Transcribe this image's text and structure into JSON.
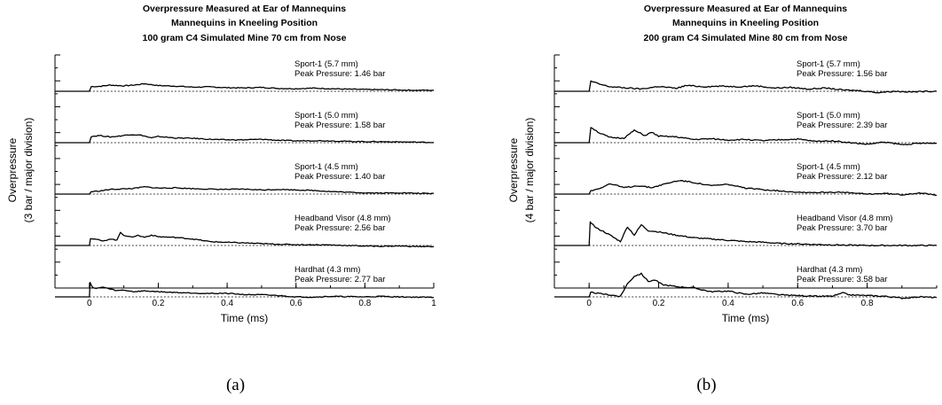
{
  "chart_data": [
    {
      "type": "line",
      "title": [
        "Overpressure Measured at Ear of Mannequins",
        "Mannequins in Kneeling Position",
        "100 gram C4 Simulated Mine 70 cm from Nose"
      ],
      "xlabel": "Time (ms)",
      "ylabel": [
        "Overpressure",
        "(3 bar / major division)"
      ],
      "xlim": [
        -0.1,
        1.0
      ],
      "xticks": [
        "0",
        "0.2",
        "0.4",
        "0.6",
        "0.8",
        "1"
      ],
      "xtick_values": [
        0,
        0.2,
        0.4,
        0.6,
        0.8,
        1.0
      ],
      "y_divisions": 5,
      "caption": "(a)",
      "series": [
        {
          "name": "Sport-1 (5.7 mm)",
          "peak_label": "Peak Pressure: 1.46 bar",
          "x": [
            -0.1,
            0.0,
            0.005,
            0.03,
            0.06,
            0.1,
            0.13,
            0.16,
            0.2,
            0.25,
            0.3,
            0.35,
            0.4,
            0.45,
            0.5,
            0.55,
            0.6,
            0.65,
            0.7,
            0.75,
            0.8,
            0.85,
            0.9,
            0.95,
            1.0
          ],
          "y": [
            0,
            0,
            0.9,
            0.95,
            1.2,
            1.05,
            1.2,
            1.46,
            1.1,
            1.0,
            0.8,
            0.85,
            0.7,
            0.65,
            0.75,
            0.55,
            0.5,
            0.6,
            0.5,
            0.4,
            0.35,
            0.3,
            0.25,
            0.2,
            0.2
          ]
        },
        {
          "name": "Sport-1 (5.0 mm)",
          "peak_label": "Peak Pressure: 1.58 bar",
          "x": [
            -0.1,
            0.0,
            0.005,
            0.03,
            0.06,
            0.09,
            0.12,
            0.15,
            0.18,
            0.2,
            0.25,
            0.3,
            0.35,
            0.4,
            0.45,
            0.5,
            0.55,
            0.6,
            0.65,
            0.7,
            0.75,
            0.8,
            0.85,
            0.9,
            0.95,
            1.0
          ],
          "y": [
            0,
            0,
            1.2,
            1.4,
            1.1,
            1.3,
            1.58,
            1.45,
            0.9,
            1.2,
            0.9,
            0.85,
            0.65,
            0.55,
            0.55,
            0.65,
            0.45,
            0.35,
            0.4,
            0.35,
            0.25,
            0.2,
            0.2,
            0.15,
            0.1,
            0.05
          ]
        },
        {
          "name": "Sport-1 (4.5 mm)",
          "peak_label": "Peak Pressure: 1.40 bar",
          "x": [
            -0.1,
            0.0,
            0.005,
            0.03,
            0.06,
            0.1,
            0.13,
            0.16,
            0.2,
            0.25,
            0.3,
            0.35,
            0.4,
            0.45,
            0.5,
            0.55,
            0.6,
            0.65,
            0.7,
            0.75,
            0.8,
            0.85,
            0.9,
            0.95,
            1.0
          ],
          "y": [
            0,
            0,
            0.45,
            0.6,
            0.9,
            1.0,
            1.1,
            1.4,
            1.15,
            1.2,
            1.05,
            0.95,
            0.9,
            0.95,
            0.8,
            0.9,
            0.8,
            0.7,
            0.5,
            0.35,
            0.25,
            0.2,
            0.25,
            0.15,
            0.1
          ]
        },
        {
          "name": "Headband Visor (4.8 mm)",
          "peak_label": "Peak Pressure: 2.56 bar",
          "x": [
            -0.1,
            0.0,
            0.003,
            0.02,
            0.04,
            0.06,
            0.08,
            0.09,
            0.1,
            0.12,
            0.14,
            0.16,
            0.18,
            0.2,
            0.25,
            0.3,
            0.35,
            0.4,
            0.45,
            0.5,
            0.55,
            0.6,
            0.65,
            0.7,
            0.75,
            0.8,
            0.85,
            0.9,
            0.95,
            1.0
          ],
          "y": [
            0,
            0,
            1.4,
            1.2,
            0.8,
            1.3,
            1.0,
            2.56,
            2.0,
            1.6,
            1.95,
            1.6,
            2.0,
            1.7,
            1.55,
            1.25,
            0.75,
            0.6,
            0.5,
            0.35,
            0.25,
            0.15,
            0.15,
            0.1,
            0.0,
            -0.1,
            -0.15,
            -0.1,
            -0.2,
            -0.2
          ]
        },
        {
          "name": "Hardhat (4.3 mm)",
          "peak_label": "Peak Pressure: 2.77 bar",
          "x": [
            -0.1,
            0.0,
            0.002,
            0.01,
            0.02,
            0.04,
            0.06,
            0.08,
            0.1,
            0.13,
            0.16,
            0.2,
            0.25,
            0.3,
            0.35,
            0.4,
            0.45,
            0.5,
            0.55,
            0.6,
            0.65,
            0.7,
            0.75,
            0.8,
            0.85,
            0.9,
            0.95,
            1.0
          ],
          "y": [
            0,
            0,
            2.77,
            1.8,
            1.6,
            1.9,
            1.5,
            1.2,
            1.3,
            1.0,
            1.15,
            1.0,
            0.85,
            0.75,
            0.65,
            0.7,
            0.45,
            0.4,
            0.25,
            0.0,
            -0.05,
            0.1,
            0.05,
            0.0,
            0.1,
            0.0,
            -0.05,
            -0.1
          ]
        }
      ]
    },
    {
      "type": "line",
      "title": [
        "Overpressure Measured at Ear of Mannequins",
        "Mannequins in Kneeling Position",
        "200 gram C4 Simulated Mine 80 cm from Nose"
      ],
      "xlabel": "Time (ms)",
      "ylabel": [
        "Overpressure",
        "(4 bar / major division)"
      ],
      "xlim": [
        -0.1,
        1.0
      ],
      "xticks": [
        "0",
        "0.2",
        "0.4",
        "0.6",
        "0.8"
      ],
      "xtick_values": [
        0,
        0.2,
        0.4,
        0.6,
        0.8
      ],
      "y_divisions": 4,
      "caption": "(b)",
      "series": [
        {
          "name": "Sport-1 (5.7 mm)",
          "peak_label": "Peak Pressure: 1.56 bar",
          "x": [
            -0.1,
            0.0,
            0.005,
            0.03,
            0.06,
            0.1,
            0.15,
            0.2,
            0.25,
            0.28,
            0.33,
            0.38,
            0.43,
            0.48,
            0.53,
            0.58,
            0.63,
            0.68,
            0.73,
            0.78,
            0.83,
            0.88,
            0.93,
            0.98,
            1.0
          ],
          "y": [
            0,
            0,
            1.56,
            1.1,
            0.7,
            0.55,
            0.35,
            0.75,
            0.45,
            0.9,
            0.7,
            0.8,
            0.7,
            0.85,
            0.5,
            0.6,
            0.35,
            0.5,
            0.2,
            0.1,
            -0.2,
            0.0,
            -0.1,
            0.0,
            0.0
          ]
        },
        {
          "name": "Sport-1 (5.0 mm)",
          "peak_label": "Peak Pressure: 2.39 bar",
          "x": [
            -0.1,
            0.0,
            0.005,
            0.03,
            0.06,
            0.1,
            0.13,
            0.16,
            0.18,
            0.2,
            0.25,
            0.3,
            0.35,
            0.4,
            0.45,
            0.5,
            0.55,
            0.6,
            0.65,
            0.7,
            0.75,
            0.8,
            0.85,
            0.9,
            0.95,
            1.0
          ],
          "y": [
            0,
            0,
            2.39,
            1.5,
            0.8,
            0.7,
            1.9,
            1.1,
            1.6,
            1.0,
            0.9,
            0.5,
            0.6,
            0.4,
            0.5,
            0.3,
            0.45,
            0.55,
            0.2,
            0.3,
            0.0,
            -0.25,
            0.1,
            -0.3,
            -0.1,
            -0.1
          ]
        },
        {
          "name": "Sport-1 (4.5 mm)",
          "peak_label": "Peak Pressure: 2.12 bar",
          "x": [
            -0.1,
            0.0,
            0.005,
            0.03,
            0.06,
            0.1,
            0.14,
            0.18,
            0.22,
            0.26,
            0.3,
            0.35,
            0.4,
            0.45,
            0.5,
            0.55,
            0.6,
            0.65,
            0.7,
            0.75,
            0.8,
            0.85,
            0.9,
            0.95,
            1.0
          ],
          "y": [
            0,
            0,
            0.5,
            0.9,
            1.6,
            1.0,
            1.3,
            1.0,
            1.6,
            2.12,
            1.8,
            1.3,
            1.5,
            0.9,
            0.7,
            0.5,
            0.3,
            0.25,
            0.3,
            0.2,
            0.0,
            0.1,
            -0.1,
            0.2,
            -0.2
          ]
        },
        {
          "name": "Headband Visor (4.8 mm)",
          "peak_label": "Peak Pressure: 3.70 bar",
          "x": [
            -0.1,
            0.0,
            0.003,
            0.02,
            0.04,
            0.06,
            0.09,
            0.11,
            0.13,
            0.15,
            0.17,
            0.2,
            0.25,
            0.3,
            0.35,
            0.4,
            0.45,
            0.5,
            0.55,
            0.6,
            0.65,
            0.7,
            0.75,
            0.8,
            0.85,
            0.9,
            0.95,
            1.0
          ],
          "y": [
            0,
            0,
            3.7,
            2.7,
            2.2,
            1.6,
            0.6,
            2.9,
            1.6,
            3.2,
            2.3,
            2.1,
            1.6,
            1.2,
            1.0,
            0.8,
            0.6,
            0.5,
            0.3,
            0.25,
            0.15,
            0.1,
            0.05,
            0.0,
            0.0,
            0.0,
            0.0,
            0.0
          ]
        },
        {
          "name": "Hardhat (4.3 mm)",
          "peak_label": "Peak Pressure: 3.58 bar",
          "x": [
            -0.1,
            0.0,
            0.005,
            0.03,
            0.06,
            0.09,
            0.11,
            0.13,
            0.15,
            0.17,
            0.19,
            0.21,
            0.25,
            0.3,
            0.35,
            0.4,
            0.45,
            0.5,
            0.55,
            0.6,
            0.65,
            0.7,
            0.73,
            0.75,
            0.8,
            0.85,
            0.9,
            0.95,
            1.0
          ],
          "y": [
            0,
            0,
            0.7,
            0.5,
            0.3,
            0.1,
            2.0,
            3.2,
            3.58,
            2.4,
            2.6,
            1.9,
            1.6,
            1.4,
            0.8,
            0.9,
            0.4,
            0.6,
            0.3,
            0.2,
            0.1,
            0.1,
            0.6,
            0.3,
            0.2,
            0.1,
            -0.2,
            0.0,
            -0.1
          ]
        }
      ]
    }
  ]
}
